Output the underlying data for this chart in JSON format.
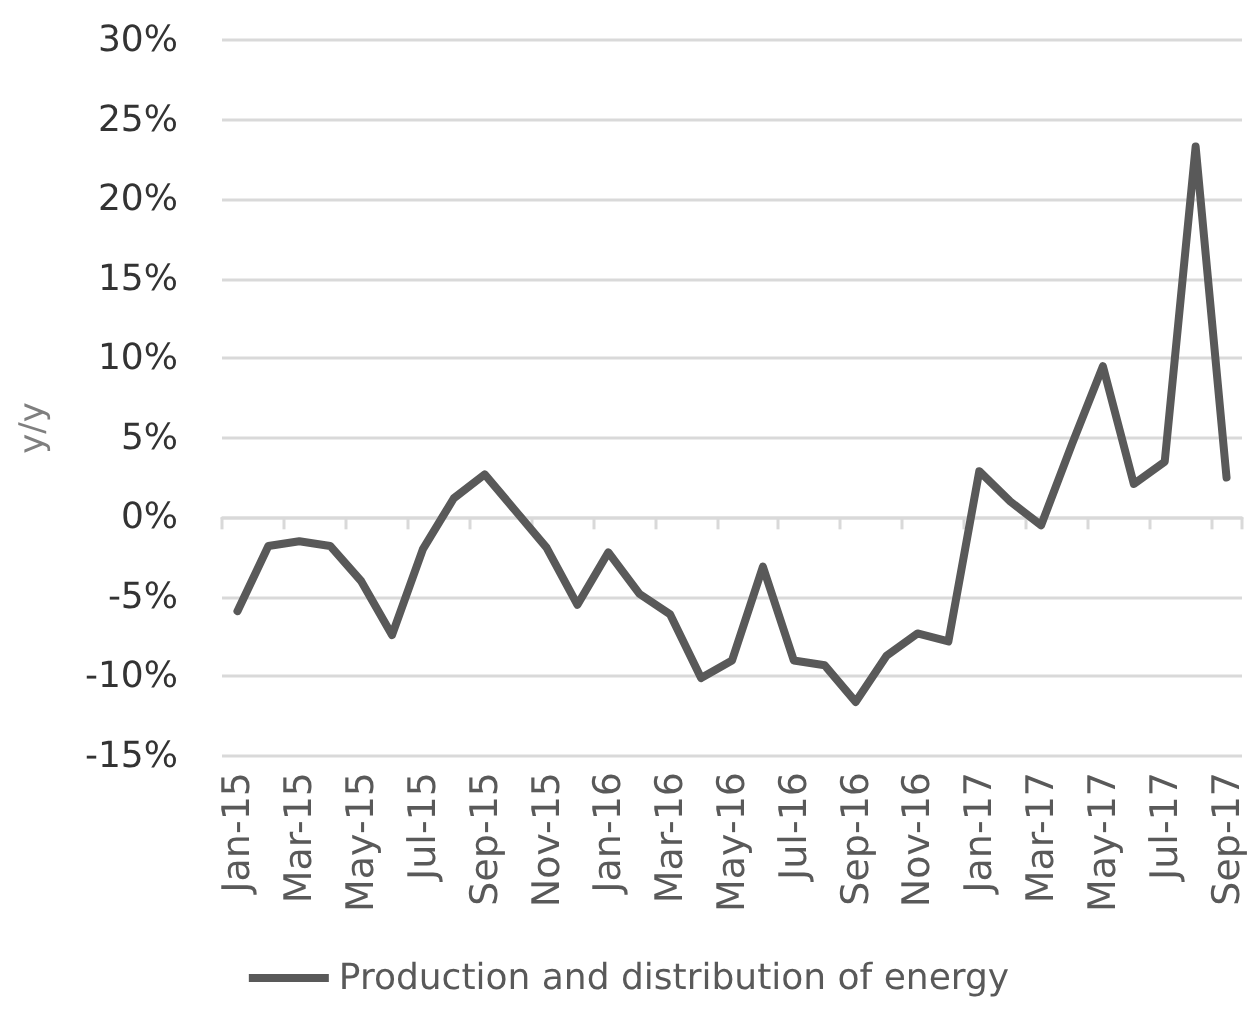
{
  "chart_data": {
    "type": "line",
    "ylabel": "y/y",
    "categories": [
      "Jan-15",
      null,
      "Mar-15",
      null,
      "May-15",
      null,
      "Jul-15",
      null,
      "Sep-15",
      null,
      "Nov-15",
      null,
      "Jan-16",
      null,
      "Mar-16",
      null,
      "May-16",
      null,
      "Jul-16",
      null,
      "Sep-16",
      null,
      "Nov-16",
      null,
      "Jan-17",
      null,
      "Mar-17",
      null,
      "May-17",
      null,
      "Jul-17",
      null,
      "Sep-17"
    ],
    "series": [
      {
        "name": "Production and distribution of energy",
        "color": "#595959",
        "values": [
          -5.9,
          -1.8,
          -1.5,
          -1.8,
          -4.0,
          -7.4,
          -2.0,
          1.2,
          2.7,
          0.4,
          -1.9,
          -5.5,
          -2.2,
          -4.8,
          -6.1,
          -10.1,
          -9.0,
          -3.1,
          -9.0,
          -9.3,
          -11.6,
          -8.7,
          -7.3,
          -7.8,
          2.9,
          1.0,
          -0.5,
          4.6,
          9.5,
          2.1,
          3.5,
          23.3,
          2.5
        ]
      }
    ],
    "ylim": [
      -15,
      30
    ],
    "yticks": [
      {
        "value": -15,
        "label": "-15%"
      },
      {
        "value": -10,
        "label": "-10%"
      },
      {
        "value": -5,
        "label": "-5%"
      },
      {
        "value": 0,
        "label": "0%"
      },
      {
        "value": 5,
        "label": "5%"
      },
      {
        "value": 10,
        "label": "10%"
      },
      {
        "value": 15,
        "label": "15%"
      },
      {
        "value": 20,
        "label": "20%"
      },
      {
        "value": 25,
        "label": "25%"
      },
      {
        "value": 30,
        "label": "30%"
      }
    ],
    "grid": "y",
    "legend": "bottom",
    "marker": "none",
    "line_style": "solid"
  }
}
